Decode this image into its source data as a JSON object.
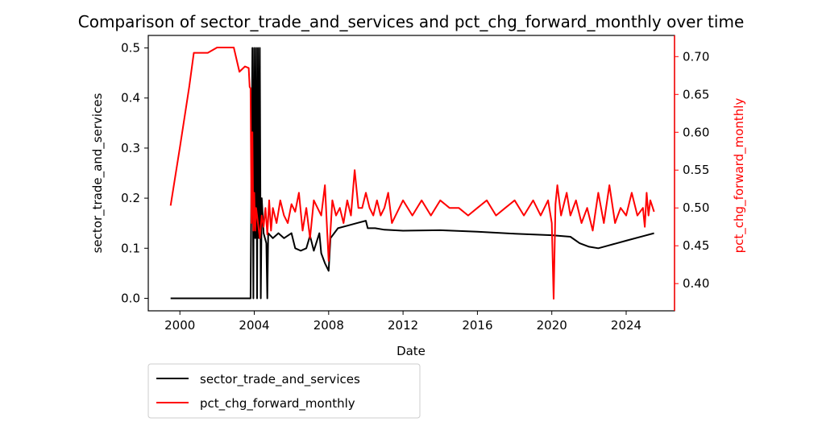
{
  "chart_data": {
    "type": "line",
    "title": "Comparison of sector_trade_and_services and pct_chg_forward_monthly over time",
    "xlabel": "Date",
    "ylabel_left": "sector_trade_and_services",
    "ylabel_right": "pct_chg_forward_monthly",
    "xlim": [
      1998.3,
      2026.6
    ],
    "ylim_left": [
      -0.025,
      0.525
    ],
    "ylim_right": [
      0.364,
      0.728
    ],
    "x_ticks": [
      "2000",
      "2004",
      "2008",
      "2012",
      "2016",
      "2020",
      "2024"
    ],
    "y_left_ticks": [
      "0.0",
      "0.1",
      "0.2",
      "0.3",
      "0.4",
      "0.5"
    ],
    "y_right_ticks": [
      "0.40",
      "0.45",
      "0.50",
      "0.55",
      "0.60",
      "0.65",
      "0.70"
    ],
    "grid": false,
    "legend_position": "below-left",
    "colors": {
      "left_axis": "#000000",
      "right_axis": "#ff0000",
      "series_1": "#000000",
      "series_2": "#ff0000"
    },
    "series": [
      {
        "name": "sector_trade_and_services",
        "axis": "left",
        "color": "#000000",
        "points": [
          [
            1999.5,
            0
          ],
          [
            2003.8,
            0
          ],
          [
            2003.9,
            0.5
          ],
          [
            2003.95,
            0
          ],
          [
            2004.0,
            0.5
          ],
          [
            2004.05,
            0.12
          ],
          [
            2004.1,
            0.5
          ],
          [
            2004.15,
            0
          ],
          [
            2004.2,
            0.5
          ],
          [
            2004.25,
            0.12
          ],
          [
            2004.3,
            0.5
          ],
          [
            2004.35,
            0
          ],
          [
            2004.4,
            0.2
          ],
          [
            2004.5,
            0.13
          ],
          [
            2004.65,
            0.11
          ],
          [
            2004.7,
            0
          ],
          [
            2004.75,
            0.13
          ],
          [
            2005.0,
            0.12
          ],
          [
            2005.3,
            0.13
          ],
          [
            2005.6,
            0.12
          ],
          [
            2006.0,
            0.13
          ],
          [
            2006.2,
            0.1
          ],
          [
            2006.5,
            0.095
          ],
          [
            2006.8,
            0.1
          ],
          [
            2007.0,
            0.125
          ],
          [
            2007.2,
            0.095
          ],
          [
            2007.5,
            0.13
          ],
          [
            2007.6,
            0.09
          ],
          [
            2007.8,
            0.07
          ],
          [
            2008.0,
            0.055
          ],
          [
            2008.1,
            0.12
          ],
          [
            2008.3,
            0.13
          ],
          [
            2008.5,
            0.14
          ],
          [
            2009.0,
            0.145
          ],
          [
            2009.5,
            0.15
          ],
          [
            2010.0,
            0.155
          ],
          [
            2010.1,
            0.14
          ],
          [
            2010.5,
            0.14
          ],
          [
            2011.0,
            0.137
          ],
          [
            2012.0,
            0.135
          ],
          [
            2014.0,
            0.136
          ],
          [
            2016.0,
            0.133
          ],
          [
            2018.0,
            0.129
          ],
          [
            2020.0,
            0.126
          ],
          [
            2021.0,
            0.123
          ],
          [
            2021.5,
            0.11
          ],
          [
            2022.0,
            0.103
          ],
          [
            2022.5,
            0.1
          ],
          [
            2023.0,
            0.105
          ],
          [
            2024.0,
            0.115
          ],
          [
            2025.0,
            0.125
          ],
          [
            2025.5,
            0.13
          ]
        ]
      },
      {
        "name": "pct_chg_forward_monthly",
        "axis": "right",
        "color": "#ff0000",
        "points": [
          [
            1999.5,
            0.503
          ],
          [
            2000.0,
            0.58
          ],
          [
            2000.5,
            0.66
          ],
          [
            2000.75,
            0.705
          ],
          [
            2001.5,
            0.705
          ],
          [
            2002.0,
            0.712
          ],
          [
            2002.5,
            0.712
          ],
          [
            2002.9,
            0.712
          ],
          [
            2003.2,
            0.68
          ],
          [
            2003.5,
            0.687
          ],
          [
            2003.7,
            0.685
          ],
          [
            2003.75,
            0.66
          ],
          [
            2003.8,
            0.658
          ],
          [
            2003.85,
            0.48
          ],
          [
            2003.9,
            0.6
          ],
          [
            2003.95,
            0.47
          ],
          [
            2004.0,
            0.52
          ],
          [
            2004.05,
            0.47
          ],
          [
            2004.1,
            0.5
          ],
          [
            2004.2,
            0.48
          ],
          [
            2004.3,
            0.46
          ],
          [
            2004.4,
            0.49
          ],
          [
            2004.5,
            0.475
          ],
          [
            2004.6,
            0.5
          ],
          [
            2004.7,
            0.465
          ],
          [
            2004.8,
            0.51
          ],
          [
            2004.9,
            0.47
          ],
          [
            2005.0,
            0.5
          ],
          [
            2005.2,
            0.48
          ],
          [
            2005.4,
            0.51
          ],
          [
            2005.6,
            0.49
          ],
          [
            2005.8,
            0.48
          ],
          [
            2006.0,
            0.505
          ],
          [
            2006.2,
            0.495
          ],
          [
            2006.4,
            0.52
          ],
          [
            2006.6,
            0.47
          ],
          [
            2006.8,
            0.5
          ],
          [
            2007.0,
            0.46
          ],
          [
            2007.2,
            0.51
          ],
          [
            2007.4,
            0.5
          ],
          [
            2007.6,
            0.49
          ],
          [
            2007.8,
            0.53
          ],
          [
            2008.0,
            0.43
          ],
          [
            2008.2,
            0.51
          ],
          [
            2008.4,
            0.49
          ],
          [
            2008.6,
            0.5
          ],
          [
            2008.8,
            0.48
          ],
          [
            2009.0,
            0.51
          ],
          [
            2009.2,
            0.49
          ],
          [
            2009.4,
            0.55
          ],
          [
            2009.6,
            0.5
          ],
          [
            2009.8,
            0.5
          ],
          [
            2010.0,
            0.52
          ],
          [
            2010.2,
            0.5
          ],
          [
            2010.4,
            0.49
          ],
          [
            2010.6,
            0.51
          ],
          [
            2010.8,
            0.49
          ],
          [
            2011.0,
            0.5
          ],
          [
            2011.2,
            0.52
          ],
          [
            2011.4,
            0.48
          ],
          [
            2011.6,
            0.49
          ],
          [
            2011.8,
            0.5
          ],
          [
            2012.0,
            0.51
          ],
          [
            2012.5,
            0.49
          ],
          [
            2013.0,
            0.51
          ],
          [
            2013.5,
            0.49
          ],
          [
            2014.0,
            0.51
          ],
          [
            2014.5,
            0.5
          ],
          [
            2015.0,
            0.5
          ],
          [
            2015.5,
            0.49
          ],
          [
            2016.0,
            0.5
          ],
          [
            2016.5,
            0.51
          ],
          [
            2017.0,
            0.49
          ],
          [
            2017.5,
            0.5
          ],
          [
            2018.0,
            0.51
          ],
          [
            2018.5,
            0.49
          ],
          [
            2019.0,
            0.51
          ],
          [
            2019.4,
            0.49
          ],
          [
            2019.8,
            0.51
          ],
          [
            2020.0,
            0.48
          ],
          [
            2020.1,
            0.38
          ],
          [
            2020.2,
            0.505
          ],
          [
            2020.3,
            0.53
          ],
          [
            2020.5,
            0.49
          ],
          [
            2020.8,
            0.52
          ],
          [
            2021.0,
            0.49
          ],
          [
            2021.3,
            0.51
          ],
          [
            2021.6,
            0.48
          ],
          [
            2021.9,
            0.5
          ],
          [
            2022.2,
            0.47
          ],
          [
            2022.5,
            0.52
          ],
          [
            2022.8,
            0.48
          ],
          [
            2023.1,
            0.53
          ],
          [
            2023.4,
            0.48
          ],
          [
            2023.7,
            0.5
          ],
          [
            2024.0,
            0.49
          ],
          [
            2024.3,
            0.52
          ],
          [
            2024.6,
            0.49
          ],
          [
            2024.9,
            0.5
          ],
          [
            2025.0,
            0.475
          ],
          [
            2025.1,
            0.52
          ],
          [
            2025.2,
            0.49
          ],
          [
            2025.3,
            0.51
          ],
          [
            2025.5,
            0.495
          ]
        ]
      }
    ]
  }
}
